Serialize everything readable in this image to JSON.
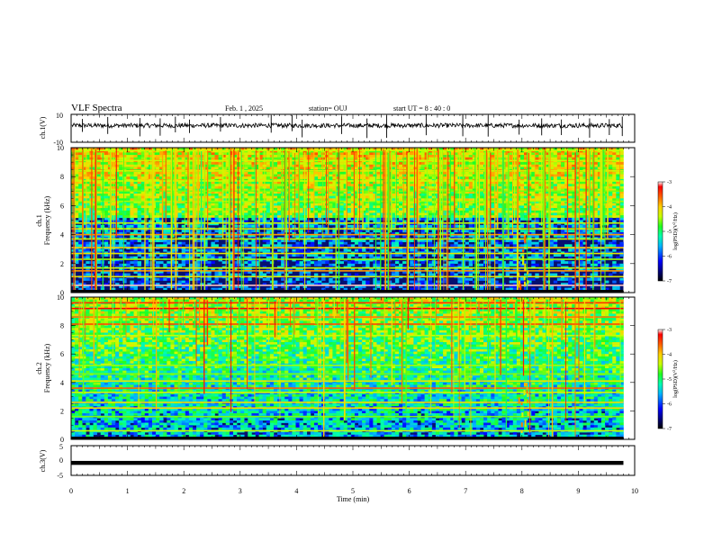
{
  "header": {
    "title": "VLF Spectra",
    "date": "Feb. 1  , 2025",
    "station": "station= OUJ",
    "start_ut": "start  UT  =   8  : 40 : 0"
  },
  "colors": {
    "background": "#ffffff",
    "axis": "#000000",
    "spectrogram_floor": "#061070",
    "colormap": [
      "#000000",
      "#000080",
      "#0000ff",
      "#00b4ff",
      "#00ffb0",
      "#20ff20",
      "#c8ff00",
      "#ffd000",
      "#ff6000",
      "#ff0000",
      "#ffffff"
    ]
  },
  "chart_data": [
    {
      "type": "line",
      "name": "waveform-ch1",
      "ylabel": "ch.1(V)",
      "xlim": [
        0,
        10
      ],
      "ylim": [
        -10,
        10
      ],
      "yticks": [
        "10",
        "-10"
      ],
      "baseline_v": 2,
      "spike_times_min": [
        0.2,
        0.65,
        1.22,
        1.58,
        1.85,
        2.1,
        2.65,
        3.55,
        3.92,
        4.1,
        4.8,
        5.25,
        5.6,
        6.3,
        6.95,
        7.4,
        7.95,
        8.35,
        8.7,
        9.2,
        9.55,
        9.78
      ]
    },
    {
      "type": "heatmap",
      "name": "spectrogram-ch1",
      "ylabel": "ch.1\nFrequency (kHz)",
      "xlim": [
        0,
        10
      ],
      "ylim": [
        0,
        10
      ],
      "yticks": [
        "0",
        "2",
        "4",
        "6",
        "8",
        "10"
      ],
      "colorbar_label": "log(PSD)(V²/Hz)",
      "colorbar_range": [
        -7,
        -3
      ],
      "colorbar_ticks": [
        "-3",
        "-4",
        "-5",
        "-6",
        "-7"
      ],
      "data_xlim_min": [
        0,
        9.8
      ],
      "bands": [
        {
          "f": 0.5,
          "level": -3.1
        },
        {
          "f": 1.1,
          "level": -4.4
        },
        {
          "f": 1.5,
          "level": -4.0
        },
        {
          "f": 1.7,
          "level": -4.6
        },
        {
          "f": 2.3,
          "level": -4.7
        },
        {
          "f": 2.7,
          "level": -4.4
        },
        {
          "f": 3.1,
          "level": -4.2
        },
        {
          "f": 3.7,
          "level": -4.6
        },
        {
          "f": 4.0,
          "level": -4.0
        },
        {
          "f": 4.4,
          "level": -4.5
        },
        {
          "f": 4.8,
          "level": -4.6
        },
        {
          "f": 6.3,
          "level": -4.7
        },
        {
          "f": 7.0,
          "level": -4.8
        },
        {
          "f": 7.7,
          "level": -4.6
        },
        {
          "f": 8.4,
          "level": -4.5
        },
        {
          "f": 9.1,
          "level": -4.6
        },
        {
          "f": 9.8,
          "level": -4.6
        }
      ],
      "sferic_threshold_khz": 4.8,
      "burst_time_min": 8.0
    },
    {
      "type": "heatmap",
      "name": "spectrogram-ch2",
      "ylabel": "ch.2\nFrequency (kHz)",
      "xlim": [
        0,
        10
      ],
      "ylim": [
        0,
        10
      ],
      "yticks": [
        "0",
        "2",
        "4",
        "6",
        "8",
        "10"
      ],
      "colorbar_label": "log(PSD)(V²/Hz)",
      "colorbar_range": [
        -7,
        -3
      ],
      "colorbar_ticks": [
        "-3",
        "-4",
        "-5",
        "-6",
        "-7"
      ],
      "data_xlim_min": [
        0,
        9.8
      ],
      "bands": [
        {
          "f": 0.6,
          "level": -4.6
        },
        {
          "f": 1.6,
          "level": -4.8
        },
        {
          "f": 2.2,
          "level": -4.2
        },
        {
          "f": 2.6,
          "level": -4.3
        },
        {
          "f": 3.3,
          "level": -4.5
        },
        {
          "f": 3.6,
          "level": -3.8
        },
        {
          "f": 4.1,
          "level": -4.4
        },
        {
          "f": 4.6,
          "level": -4.8
        },
        {
          "f": 5.2,
          "level": -4.7
        },
        {
          "f": 7.3,
          "level": -4.6
        },
        {
          "f": 8.1,
          "level": -3.7
        },
        {
          "f": 8.6,
          "level": -3.9
        },
        {
          "f": 9.2,
          "level": -3.4
        },
        {
          "f": 9.6,
          "level": -3.6
        }
      ],
      "sferic_threshold_khz": 0.5,
      "burst_time_min": 8.0
    },
    {
      "type": "line",
      "name": "waveform-ch3",
      "ylabel": "ch.3(V)",
      "xlabel": "Time  (min)",
      "xlim": [
        0,
        10
      ],
      "ylim": [
        -5,
        5
      ],
      "yticks": [
        "5",
        "0",
        "-5"
      ],
      "xticks": [
        "0",
        "1",
        "2",
        "3",
        "4",
        "5",
        "6",
        "7",
        "8",
        "9",
        "10"
      ],
      "baseline_v": -0.8
    }
  ]
}
